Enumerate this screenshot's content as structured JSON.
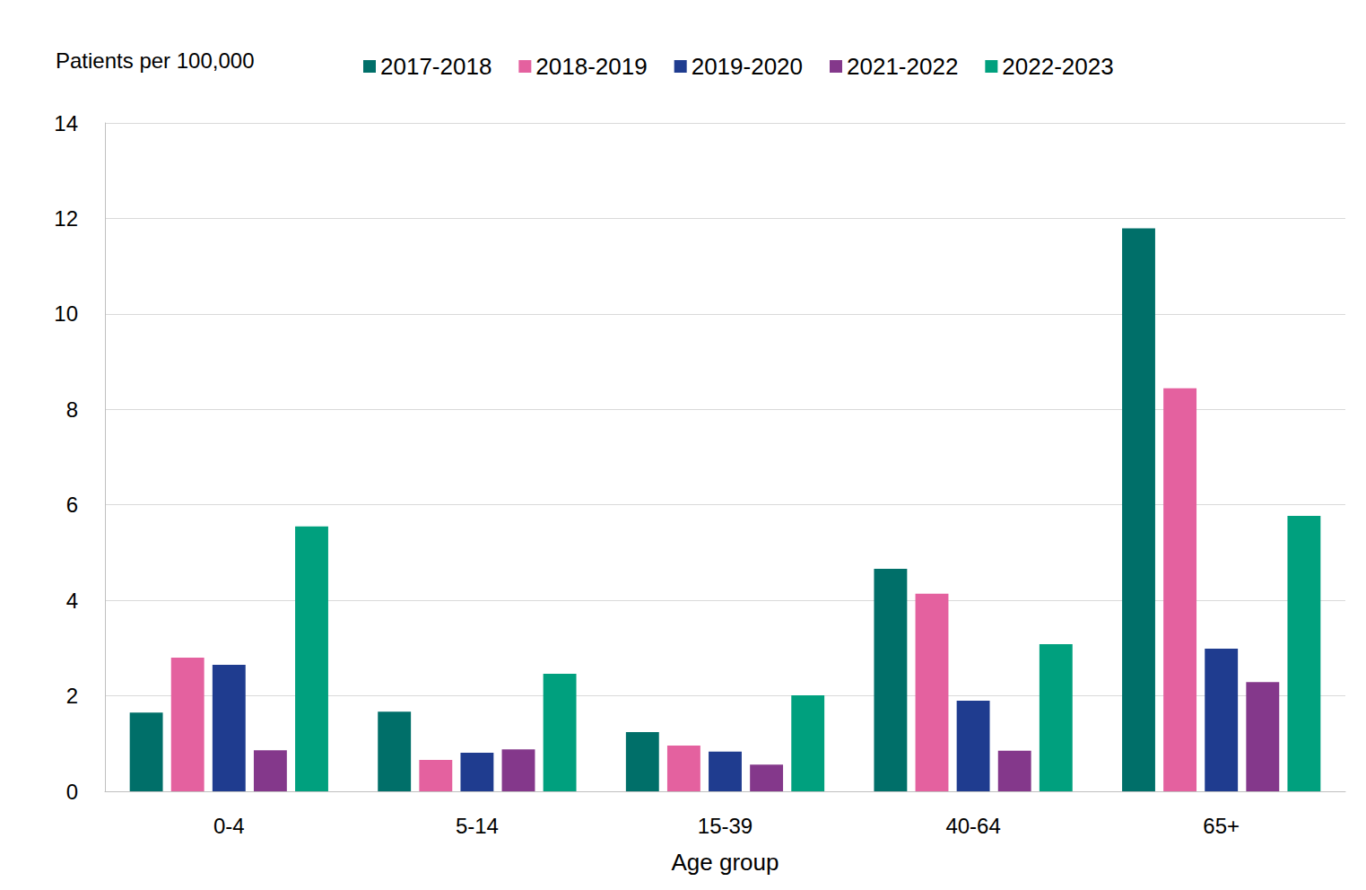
{
  "chart_data": {
    "type": "bar",
    "x_label": "Age group",
    "y_label": "Patients per 100,000",
    "categories": [
      "0-4",
      "5-14",
      "15-39",
      "40-64",
      "65+"
    ],
    "series": [
      {
        "name": "2017-2018",
        "color": "#006f69",
        "values": [
          1.65,
          1.67,
          1.24,
          4.66,
          11.79
        ]
      },
      {
        "name": "2018-2019",
        "color": "#e4619f",
        "values": [
          2.8,
          0.66,
          0.96,
          4.14,
          8.44
        ]
      },
      {
        "name": "2019-2020",
        "color": "#1f3c8f",
        "values": [
          2.65,
          0.81,
          0.83,
          1.9,
          2.99
        ]
      },
      {
        "name": "2021-2022",
        "color": "#84388b",
        "values": [
          0.86,
          0.88,
          0.56,
          0.85,
          2.29
        ]
      },
      {
        "name": "2022-2023",
        "color": "#00a07e",
        "values": [
          5.55,
          2.46,
          2.01,
          3.08,
          5.77
        ]
      }
    ],
    "ylim": [
      0,
      14
    ],
    "yticks": [
      0,
      2,
      4,
      6,
      8,
      10,
      12,
      14
    ],
    "grid": true,
    "legend": "top"
  }
}
